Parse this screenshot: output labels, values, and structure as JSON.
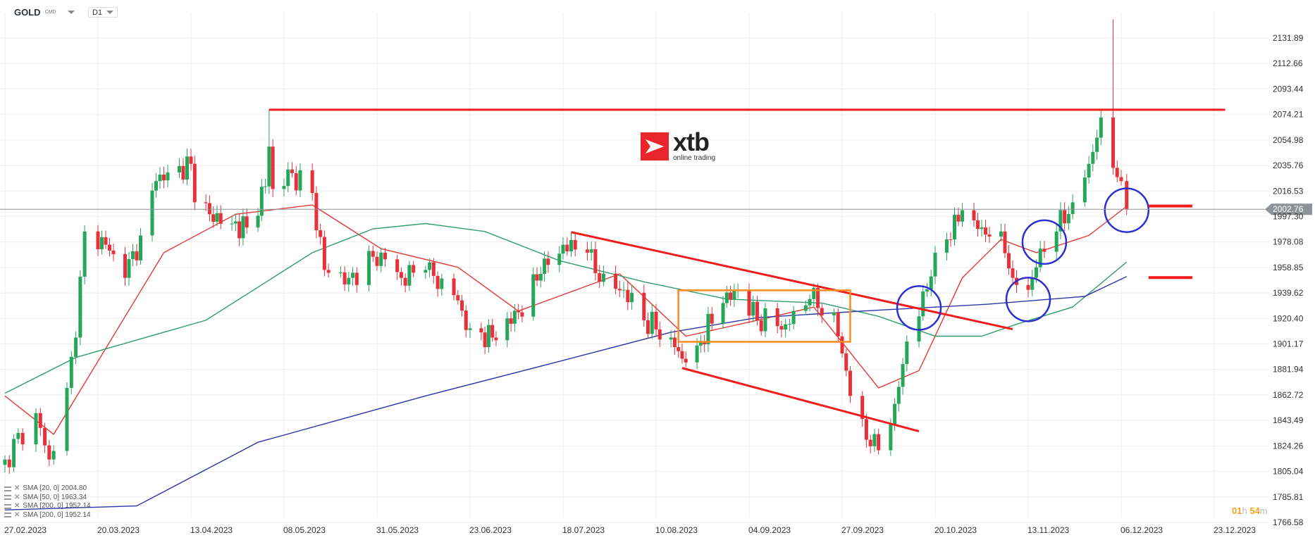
{
  "header": {
    "symbol": "GOLD",
    "symbol_type": "CMD",
    "timeframe": "D1"
  },
  "logo": {
    "brand": "xtb",
    "tagline": "online trading"
  },
  "legend": [
    {
      "label": "SMA [20, 0] 2004.80"
    },
    {
      "label": "SMA [50, 0] 1963.34"
    },
    {
      "label": "SMA [200, 0] 1952.14"
    },
    {
      "label": "SMA [200, 0] 1952.14"
    }
  ],
  "countdown": {
    "hours": "01",
    "h": "h",
    "minutes": "54",
    "m": "m"
  },
  "colors": {
    "up": "#26a65b",
    "down": "#e8303a",
    "sma20": "#e53935",
    "sma50": "#2e9e6a",
    "sma200": "#2b35a8",
    "drawing_red": "#f21c1c",
    "drawing_orange": "#ff8a1e",
    "drawing_blue": "#2b2fd0",
    "grid": "#eeeeee",
    "price_tag": "#8a9397"
  },
  "chart_data": {
    "type": "candlestick",
    "title": "",
    "y_ticks": [
      "2131.89",
      "2112.66",
      "2093.44",
      "2074.21",
      "2054.98",
      "2035.76",
      "2016.53",
      "1997.30",
      "1978.08",
      "1958.85",
      "1939.62",
      "1920.40",
      "1901.17",
      "1881.94",
      "1862.72",
      "1843.49",
      "1824.26",
      "1805.04",
      "1785.81",
      "1766.58"
    ],
    "ylim": [
      1766.58,
      2131.89
    ],
    "x_ticks": [
      "27.02.2023",
      "20.03.2023",
      "13.04.2023",
      "08.05.2023",
      "31.05.2023",
      "23.06.2023",
      "18.07.2023",
      "10.08.2023",
      "04.09.2023",
      "27.09.2023",
      "20.10.2023",
      "13.11.2023",
      "06.12.2023",
      "23.12.2023"
    ],
    "current_price": "2002.76",
    "grid": true,
    "price_path": [
      {
        "date": "2023-02-27",
        "close": 1814
      },
      {
        "date": "2023-03-06",
        "close": 1849
      },
      {
        "date": "2023-03-09",
        "close": 1814
      },
      {
        "date": "2023-03-13",
        "close": 1868
      },
      {
        "date": "2023-03-15",
        "close": 1906
      },
      {
        "date": "2023-03-17",
        "close": 1986
      },
      {
        "date": "2023-03-22",
        "close": 1976
      },
      {
        "date": "2023-03-27",
        "close": 1951
      },
      {
        "date": "2023-03-31",
        "close": 1983
      },
      {
        "date": "2023-04-04",
        "close": 2024
      },
      {
        "date": "2023-04-13",
        "close": 2037
      },
      {
        "date": "2023-04-14",
        "close": 2008
      },
      {
        "date": "2023-04-18",
        "close": 1999
      },
      {
        "date": "2023-04-24",
        "close": 1992
      },
      {
        "date": "2023-04-28",
        "close": 1989
      },
      {
        "date": "2023-05-03",
        "close": 2020
      },
      {
        "date": "2023-05-04",
        "close": 2050,
        "high": 2078
      },
      {
        "date": "2023-05-05",
        "close": 2018
      },
      {
        "date": "2023-05-10",
        "close": 2030
      },
      {
        "date": "2023-05-15",
        "close": 2015
      },
      {
        "date": "2023-05-18",
        "close": 1957
      },
      {
        "date": "2023-05-24",
        "close": 1951
      },
      {
        "date": "2023-06-01",
        "close": 1970
      },
      {
        "date": "2023-06-06",
        "close": 1951
      },
      {
        "date": "2023-06-12",
        "close": 1957
      },
      {
        "date": "2023-06-19",
        "close": 1938
      },
      {
        "date": "2023-06-23",
        "close": 1913
      },
      {
        "date": "2023-06-29",
        "close": 1906
      },
      {
        "date": "2023-07-06",
        "close": 1925
      },
      {
        "date": "2023-07-12",
        "close": 1954
      },
      {
        "date": "2023-07-18",
        "close": 1976
      },
      {
        "date": "2023-07-24",
        "close": 1970
      },
      {
        "date": "2023-07-27",
        "close": 1948
      },
      {
        "date": "2023-08-02",
        "close": 1942
      },
      {
        "date": "2023-08-07",
        "close": 1919
      },
      {
        "date": "2023-08-14",
        "close": 1906
      },
      {
        "date": "2023-08-17",
        "close": 1890
      },
      {
        "date": "2023-08-21",
        "close": 1900
      },
      {
        "date": "2023-08-28",
        "close": 1932
      },
      {
        "date": "2023-09-01",
        "close": 1942
      },
      {
        "date": "2023-09-06",
        "close": 1919
      },
      {
        "date": "2023-09-13",
        "close": 1916
      },
      {
        "date": "2023-09-19",
        "close": 1935
      },
      {
        "date": "2023-09-25",
        "close": 1925
      },
      {
        "date": "2023-09-27",
        "close": 1894
      },
      {
        "date": "2023-09-29",
        "close": 1862
      },
      {
        "date": "2023-10-04",
        "close": 1824
      },
      {
        "date": "2023-10-06",
        "close": 1821
      },
      {
        "date": "2023-10-10",
        "close": 1856
      },
      {
        "date": "2023-10-13",
        "close": 1903
      },
      {
        "date": "2023-10-16",
        "close": 1922
      },
      {
        "date": "2023-10-20",
        "close": 1970
      },
      {
        "date": "2023-10-23",
        "close": 1980
      },
      {
        "date": "2023-10-27",
        "close": 2002
      },
      {
        "date": "2023-11-01",
        "close": 1989
      },
      {
        "date": "2023-11-06",
        "close": 1986
      },
      {
        "date": "2023-11-09",
        "close": 1951
      },
      {
        "date": "2023-11-13",
        "close": 1942
      },
      {
        "date": "2023-11-16",
        "close": 1973
      },
      {
        "date": "2023-11-20",
        "close": 1986
      },
      {
        "date": "2023-11-24",
        "close": 2008
      },
      {
        "date": "2023-11-28",
        "close": 2037
      },
      {
        "date": "2023-12-01",
        "close": 2072
      },
      {
        "date": "2023-12-04",
        "close": 2034,
        "high": 2146
      },
      {
        "date": "2023-12-05",
        "close": 2027
      },
      {
        "date": "2023-12-06",
        "close": 2024
      },
      {
        "date": "2023-12-07",
        "close": 2003
      }
    ],
    "sma": [
      {
        "period": 20,
        "color_key": "sma20",
        "points": [
          [
            "2023-02-27",
            1862
          ],
          [
            "2023-03-10",
            1833
          ],
          [
            "2023-04-06",
            1970
          ],
          [
            "2023-04-25",
            1999
          ],
          [
            "2023-05-15",
            2006
          ],
          [
            "2023-06-01",
            1973
          ],
          [
            "2023-06-20",
            1959
          ],
          [
            "2023-07-06",
            1926
          ],
          [
            "2023-07-24",
            1945
          ],
          [
            "2023-08-01",
            1954
          ],
          [
            "2023-08-18",
            1907
          ],
          [
            "2023-09-06",
            1919
          ],
          [
            "2023-09-20",
            1929
          ],
          [
            "2023-10-06",
            1868
          ],
          [
            "2023-10-16",
            1881
          ],
          [
            "2023-10-27",
            1951
          ],
          [
            "2023-11-06",
            1980
          ],
          [
            "2023-11-15",
            1970
          ],
          [
            "2023-11-28",
            1983
          ],
          [
            "2023-12-07",
            2005
          ]
        ]
      },
      {
        "period": 50,
        "color_key": "sma50",
        "points": [
          [
            "2023-02-27",
            1864
          ],
          [
            "2023-03-15",
            1891
          ],
          [
            "2023-04-17",
            1919
          ],
          [
            "2023-05-15",
            1970
          ],
          [
            "2023-05-30",
            1988
          ],
          [
            "2023-06-12",
            1992
          ],
          [
            "2023-06-27",
            1986
          ],
          [
            "2023-07-17",
            1964
          ],
          [
            "2023-08-07",
            1948
          ],
          [
            "2023-08-29",
            1935
          ],
          [
            "2023-09-22",
            1932
          ],
          [
            "2023-10-06",
            1922
          ],
          [
            "2023-10-20",
            1907
          ],
          [
            "2023-11-01",
            1907
          ],
          [
            "2023-11-10",
            1916
          ],
          [
            "2023-11-24",
            1929
          ],
          [
            "2023-12-07",
            1963
          ]
        ]
      },
      {
        "period": 200,
        "color_key": "sma200",
        "points": [
          [
            "2023-02-27",
            1776
          ],
          [
            "2023-03-30",
            1779
          ],
          [
            "2023-05-01",
            1827
          ],
          [
            "2023-06-12",
            1862
          ],
          [
            "2023-07-17",
            1888
          ],
          [
            "2023-08-14",
            1910
          ],
          [
            "2023-09-06",
            1921
          ],
          [
            "2023-10-02",
            1926
          ],
          [
            "2023-11-02",
            1931
          ],
          [
            "2023-11-27",
            1937
          ],
          [
            "2023-12-07",
            1952
          ]
        ]
      }
    ],
    "drawings": {
      "resistance": {
        "from": [
          "2023-05-04",
          2077.8
        ],
        "to": [
          "2023-12-25",
          2077.8
        ]
      },
      "channel_upper": {
        "from": [
          "2023-07-20",
          1985.5
        ],
        "to": [
          "2023-11-09",
          1912.3
        ]
      },
      "channel_lower": {
        "from": [
          "2023-08-17",
          1883
        ],
        "to": [
          "2023-10-16",
          1835.3
        ]
      },
      "consolidation_box": {
        "from": [
          "2023-08-16",
          1941.6
        ],
        "to": [
          "2023-09-29",
          1902.8
        ]
      },
      "circles": [
        [
          "2023-10-16",
          1928.3
        ],
        [
          "2023-11-13",
          1934.7
        ],
        [
          "2023-11-17",
          1978
        ],
        [
          "2023-12-07",
          2002
        ]
      ],
      "levels": [
        {
          "from": "2023-12-11",
          "to": "2023-12-19",
          "price": 2005.2
        },
        {
          "from": "2023-12-11",
          "to": "2023-12-19",
          "price": 1951.2
        }
      ]
    }
  }
}
